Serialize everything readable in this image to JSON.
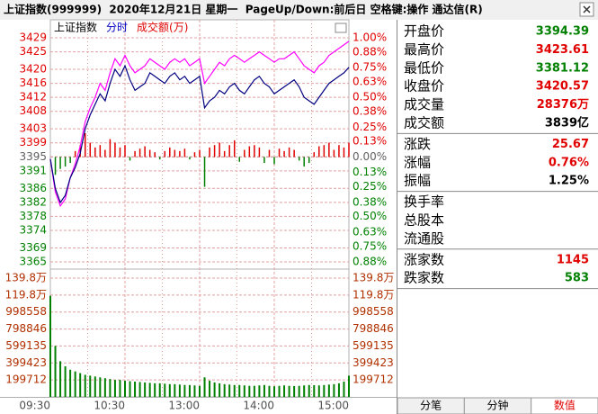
{
  "title_bar": {
    "text": "上证指数(999999)  2020年12月21日 星期一  PageUp/Down:前后日 空格键:操作 通达信(R)"
  },
  "chart_data": {
    "type": "line",
    "header": [
      {
        "text": "上证指数",
        "color": "#000000"
      },
      {
        "text": "分时",
        "color": "#0000c0"
      },
      {
        "text": "成交额(万)",
        "color": "#e00000"
      }
    ],
    "time_labels": [
      "09:30",
      "10:30",
      "13:00",
      "14:00",
      "15:00"
    ],
    "grid": true,
    "up_color": "#e00000",
    "down_color": "#008000",
    "flat_color": "#606060",
    "ylim": [
      3365,
      3429
    ],
    "yticks": [
      3429,
      3425,
      3420,
      3416,
      3412,
      3408,
      3403,
      3399,
      3395,
      3391,
      3386,
      3382,
      3378,
      3374,
      3369,
      3365
    ],
    "y2lim": [
      -0.88,
      1.0
    ],
    "y2ticks": [
      {
        "value": 1.0,
        "label": "1.00%"
      },
      {
        "value": 0.88,
        "label": "0.88%"
      },
      {
        "value": 0.75,
        "label": "0.75%"
      },
      {
        "value": 0.63,
        "label": "0.63%"
      },
      {
        "value": 0.5,
        "label": "0.50%"
      },
      {
        "value": 0.38,
        "label": "0.38%"
      },
      {
        "value": 0.25,
        "label": "0.25%"
      },
      {
        "value": 0.13,
        "label": "0.13%"
      },
      {
        "value": 0,
        "label": "0.00%"
      },
      {
        "value": -0.13,
        "label": "0.13%"
      },
      {
        "value": -0.25,
        "label": "0.25%"
      },
      {
        "value": -0.38,
        "label": "0.38%"
      },
      {
        "value": -0.5,
        "label": "0.50%"
      },
      {
        "value": -0.63,
        "label": "0.63%"
      },
      {
        "value": -0.75,
        "label": "0.75%"
      },
      {
        "value": -0.88,
        "label": "0.88%"
      }
    ],
    "series": [
      {
        "color": "#ff00ff",
        "values": [
          3394.4,
          3385,
          3381,
          3383,
          3389,
          3393,
          3398,
          3405,
          3409,
          3412,
          3416,
          3414,
          3419,
          3423,
          3421,
          3424,
          3421,
          3419,
          3420,
          3421,
          3423,
          3422,
          3421,
          3420,
          3422,
          3423,
          3422,
          3423,
          3421,
          3422,
          3423,
          3416,
          3418,
          3420,
          3422,
          3421,
          3423,
          3424,
          3423,
          3422,
          3423,
          3424,
          3425,
          3424,
          3423,
          3422,
          3423,
          3423,
          3424,
          3425,
          3423,
          3421,
          3420,
          3419,
          3421,
          3422,
          3424,
          3425,
          3426,
          3427,
          3428
        ]
      },
      {
        "color": "#000080",
        "values": [
          3394.4,
          3386,
          3382,
          3384,
          3389,
          3392,
          3396,
          3403,
          3407,
          3410,
          3413,
          3411,
          3416,
          3420,
          3418,
          3421,
          3417,
          3414,
          3415,
          3416,
          3419,
          3418,
          3417,
          3416,
          3418,
          3419,
          3417,
          3418,
          3416,
          3417,
          3418,
          3409,
          3411,
          3412,
          3414,
          3413,
          3415,
          3416,
          3414,
          3413,
          3415,
          3417,
          3418,
          3416,
          3415,
          3413,
          3414,
          3415,
          3416,
          3417,
          3415,
          3412,
          3411,
          3410,
          3412,
          3414,
          3416,
          3417,
          3418,
          3419,
          3420.57
        ]
      }
    ],
    "strength": {
      "axis": "y2",
      "values": [
        0,
        -0.15,
        -0.1,
        -0.08,
        -0.05,
        0.05,
        0.1,
        0.2,
        0.12,
        0.08,
        0.1,
        0.06,
        0.15,
        0.12,
        0.08,
        0.1,
        -0.03,
        0.05,
        0.07,
        0.09,
        0.06,
        0.04,
        -0.02,
        0.05,
        0.08,
        0.06,
        0.05,
        0.07,
        -0.02,
        0.04,
        0.06,
        -0.25,
        0.08,
        0.1,
        0.12,
        0.05,
        0.1,
        0.14,
        -0.04,
        0.06,
        0.09,
        0.1,
        0.08,
        -0.05,
        0.06,
        -0.06,
        0.07,
        0.05,
        0.08,
        0.06,
        -0.03,
        -0.08,
        -0.05,
        0.04,
        0.09,
        0.1,
        0.12,
        0.06,
        0.1,
        0.08,
        0.12
      ]
    },
    "volume": {
      "color": "#008000",
      "label_color": "#b03000",
      "ylim": [
        0,
        1398000
      ],
      "yticks": [
        {
          "value": 1398000,
          "label": "139.8万"
        },
        {
          "value": 1198000,
          "label": "119.8万"
        },
        998558,
        798846,
        599135,
        399423,
        199712
      ],
      "values": [
        1190000,
        600000,
        420000,
        360000,
        320000,
        300000,
        280000,
        260000,
        250000,
        240000,
        230000,
        220000,
        210000,
        200000,
        200000,
        190000,
        185000,
        180000,
        175000,
        170000,
        165000,
        160000,
        160000,
        155000,
        150000,
        150000,
        145000,
        140000,
        140000,
        135000,
        130000,
        230000,
        190000,
        170000,
        160000,
        150000,
        145000,
        140000,
        140000,
        135000,
        130000,
        130000,
        135000,
        140000,
        130000,
        125000,
        130000,
        135000,
        130000,
        128000,
        130000,
        135000,
        140000,
        138000,
        135000,
        140000,
        145000,
        150000,
        160000,
        180000,
        250000
      ]
    }
  },
  "quote_panel": {
    "groups": [
      [
        {
          "label": "开盘价",
          "value": 3394.39,
          "color": "#008000"
        },
        {
          "label": "最高价",
          "value": 3423.61,
          "color": "#e00000"
        },
        {
          "label": "最低价",
          "value": 3381.12,
          "color": "#008000"
        },
        {
          "label": "收盘价",
          "value": 3420.57,
          "color": "#e00000"
        },
        {
          "label": "成交量",
          "value": "28376万",
          "color": "#e00000"
        },
        {
          "label": "成交额",
          "value": "3839亿",
          "color": "#000000"
        }
      ],
      [
        {
          "label": "涨跌",
          "value": 25.67,
          "color": "#e00000"
        },
        {
          "label": "涨幅",
          "value": "0.76%",
          "color": "#e00000"
        },
        {
          "label": "振幅",
          "value": "1.25%",
          "color": "#000000"
        }
      ],
      [
        {
          "label": "换手率"
        },
        {
          "label": "总股本"
        },
        {
          "label": "流通股"
        }
      ],
      [
        {
          "label": "涨家数",
          "value": 1145,
          "color": "#e00000"
        },
        {
          "label": "跌家数",
          "value": 583,
          "color": "#008000"
        }
      ]
    ]
  },
  "tabs": [
    "分笔",
    "分钟",
    "数值"
  ],
  "active_tab": 2
}
